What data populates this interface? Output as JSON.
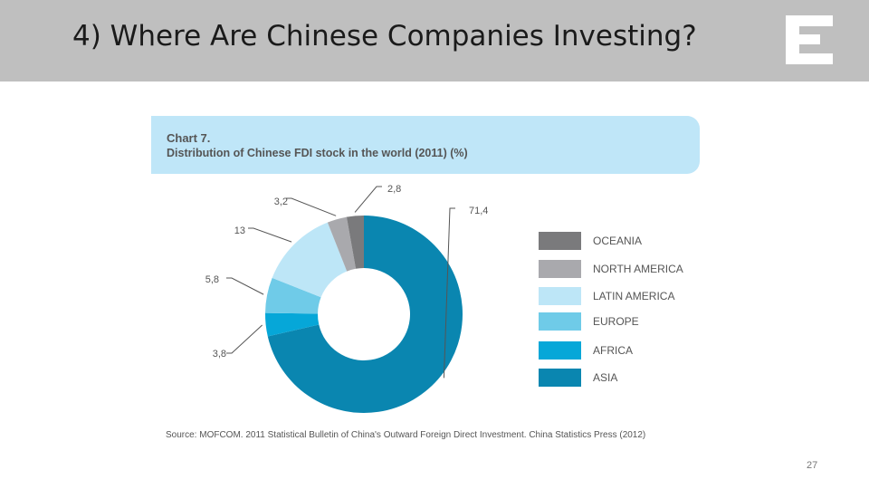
{
  "slide": {
    "title": "4) Where Are Chinese Companies Investing?",
    "page_number": "27",
    "logo_icon": "letter-e-logo-icon"
  },
  "chart_data": {
    "type": "pie",
    "chart_number": "Chart 7.",
    "title": "Distribution of Chinese FDI stock in the world (2011) (%)",
    "source": "Source: MOFCOM. 2011 Statistical Bulletin of China's Outward Foreign Direct Investment. China Statistics Press (2012)",
    "donut": true,
    "legend_position": "right",
    "slices": [
      {
        "name": "ASIA",
        "value": 71.4,
        "label": "71,4",
        "color": "#0a86b0"
      },
      {
        "name": "AFRICA",
        "value": 3.8,
        "label": "3,8",
        "color": "#06a7d8"
      },
      {
        "name": "EUROPE",
        "value": 5.8,
        "label": "5,8",
        "color": "#6fcbe8"
      },
      {
        "name": "LATIN AMERICA",
        "value": 13,
        "label": "13",
        "color": "#bde6f7"
      },
      {
        "name": "NORTH AMERICA",
        "value": 3.2,
        "label": "3,2",
        "color": "#a9a9ad"
      },
      {
        "name": "OCEANIA",
        "value": 2.8,
        "label": "2,8",
        "color": "#7a7a7c"
      }
    ],
    "legend_order": [
      "OCEANIA",
      "NORTH AMERICA",
      "LATIN AMERICA",
      "EUROPE",
      "AFRICA",
      "ASIA"
    ]
  }
}
